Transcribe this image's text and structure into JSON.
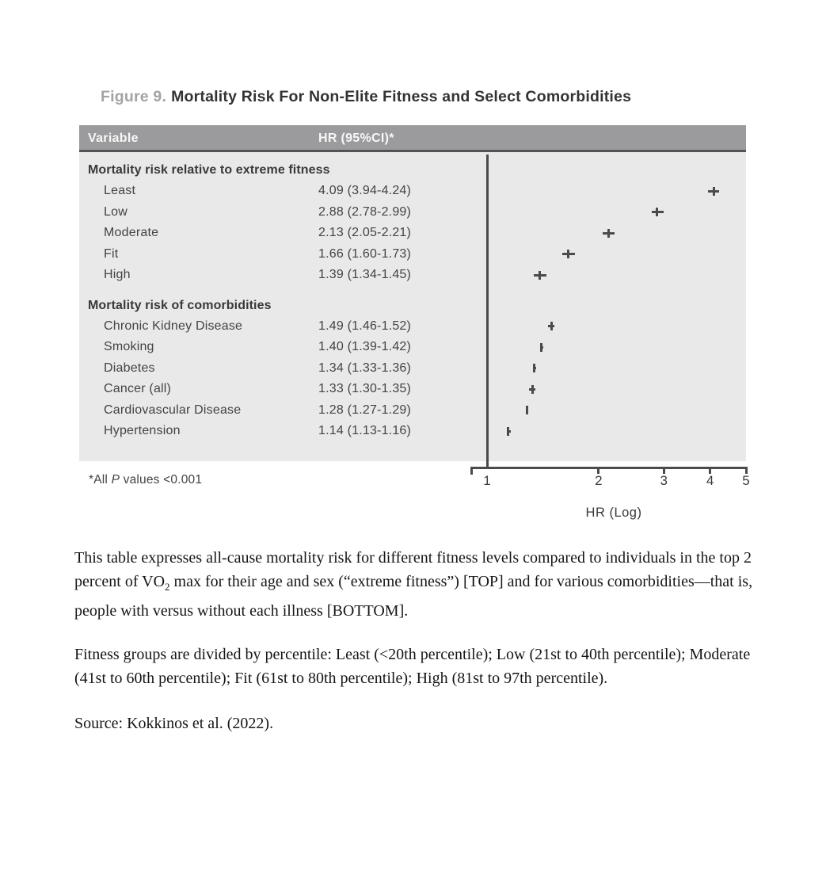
{
  "figure": {
    "label": "Figure 9.",
    "title": "Mortality Risk For Non-Elite Fitness and Select Comorbidities"
  },
  "table": {
    "columns": [
      "Variable",
      "HR (95%CI)*"
    ],
    "sections": [
      {
        "header": "Mortality risk relative to extreme fitness",
        "rows": [
          {
            "label": "Least",
            "hr_text": "4.09 (3.94-4.24)"
          },
          {
            "label": "Low",
            "hr_text": "2.88 (2.78-2.99)"
          },
          {
            "label": "Moderate",
            "hr_text": "2.13 (2.05-2.21)"
          },
          {
            "label": "Fit",
            "hr_text": "1.66 (1.60-1.73)"
          },
          {
            "label": "High",
            "hr_text": "1.39 (1.34-1.45)"
          }
        ]
      },
      {
        "header": "Mortality risk of comorbidities",
        "rows": [
          {
            "label": "Chronic Kidney Disease",
            "hr_text": "1.49 (1.46-1.52)"
          },
          {
            "label": "Smoking",
            "hr_text": "1.40 (1.39-1.42)"
          },
          {
            "label": "Diabetes",
            "hr_text": "1.34 (1.33-1.36)"
          },
          {
            "label": "Cancer (all)",
            "hr_text": "1.33 (1.30-1.35)"
          },
          {
            "label": "Cardiovascular Disease",
            "hr_text": "1.28 (1.27-1.29)"
          },
          {
            "label": "Hypertension",
            "hr_text": "1.14 (1.13-1.16)"
          }
        ]
      }
    ],
    "footnote": {
      "prefix": "*All ",
      "italic": "P",
      "suffix": " values <0.001"
    }
  },
  "chart_data": {
    "type": "scatter",
    "subtype": "forest-plot",
    "title": "",
    "xlabel": "HR (Log)",
    "ylabel": "",
    "x_scale": "log",
    "xlim": [
      1,
      5
    ],
    "x_ticks": [
      1,
      2,
      3,
      4,
      5
    ],
    "grid": false,
    "marker_style": "plus: point estimate tick with horizontal CI bar",
    "series": [
      {
        "name": "Mortality risk relative to extreme fitness",
        "points": [
          {
            "label": "Least",
            "hr": 4.09,
            "ci_low": 3.94,
            "ci_high": 4.24
          },
          {
            "label": "Low",
            "hr": 2.88,
            "ci_low": 2.78,
            "ci_high": 2.99
          },
          {
            "label": "Moderate",
            "hr": 2.13,
            "ci_low": 2.05,
            "ci_high": 2.21
          },
          {
            "label": "Fit",
            "hr": 1.66,
            "ci_low": 1.6,
            "ci_high": 1.73
          },
          {
            "label": "High",
            "hr": 1.39,
            "ci_low": 1.34,
            "ci_high": 1.45
          }
        ]
      },
      {
        "name": "Mortality risk of comorbidities",
        "points": [
          {
            "label": "Chronic Kidney Disease",
            "hr": 1.49,
            "ci_low": 1.46,
            "ci_high": 1.52
          },
          {
            "label": "Smoking",
            "hr": 1.4,
            "ci_low": 1.39,
            "ci_high": 1.42
          },
          {
            "label": "Diabetes",
            "hr": 1.34,
            "ci_low": 1.33,
            "ci_high": 1.36
          },
          {
            "label": "Cancer (all)",
            "hr": 1.33,
            "ci_low": 1.3,
            "ci_high": 1.35
          },
          {
            "label": "Cardiovascular Disease",
            "hr": 1.28,
            "ci_low": 1.27,
            "ci_high": 1.29
          },
          {
            "label": "Hypertension",
            "hr": 1.14,
            "ci_low": 1.13,
            "ci_high": 1.16
          }
        ]
      }
    ]
  },
  "notes": {
    "para1_before_sub": "This table expresses all-cause mortality risk for different fitness levels compared to individuals in the top 2 percent of VO",
    "para1_sub": "2",
    "para1_after_sub": " max for their age and sex (“extreme fitness”) [TOP] and for various comorbidities—that is, people with versus without each illness [BOTTOM].",
    "para2": "Fitness groups are divided by percentile: Least (<20th percentile); Low (21st to 40th percentile); Moderate (41st to 60th percentile); Fit (61st to 80th percentile); High (81st to 97th percentile).",
    "source": "Source: Kokkinos et al. (2022)."
  },
  "colors": {
    "header_bar": "#9b9b9d",
    "header_text": "#f7f7f7",
    "header_border": "#545456",
    "table_bg": "#e9e9ea",
    "table_text": "#434345",
    "marker_axis": "#4b4b4d",
    "figure_label": "#a3a3a5",
    "figure_title": "#333335",
    "serif_text": "#161616"
  }
}
